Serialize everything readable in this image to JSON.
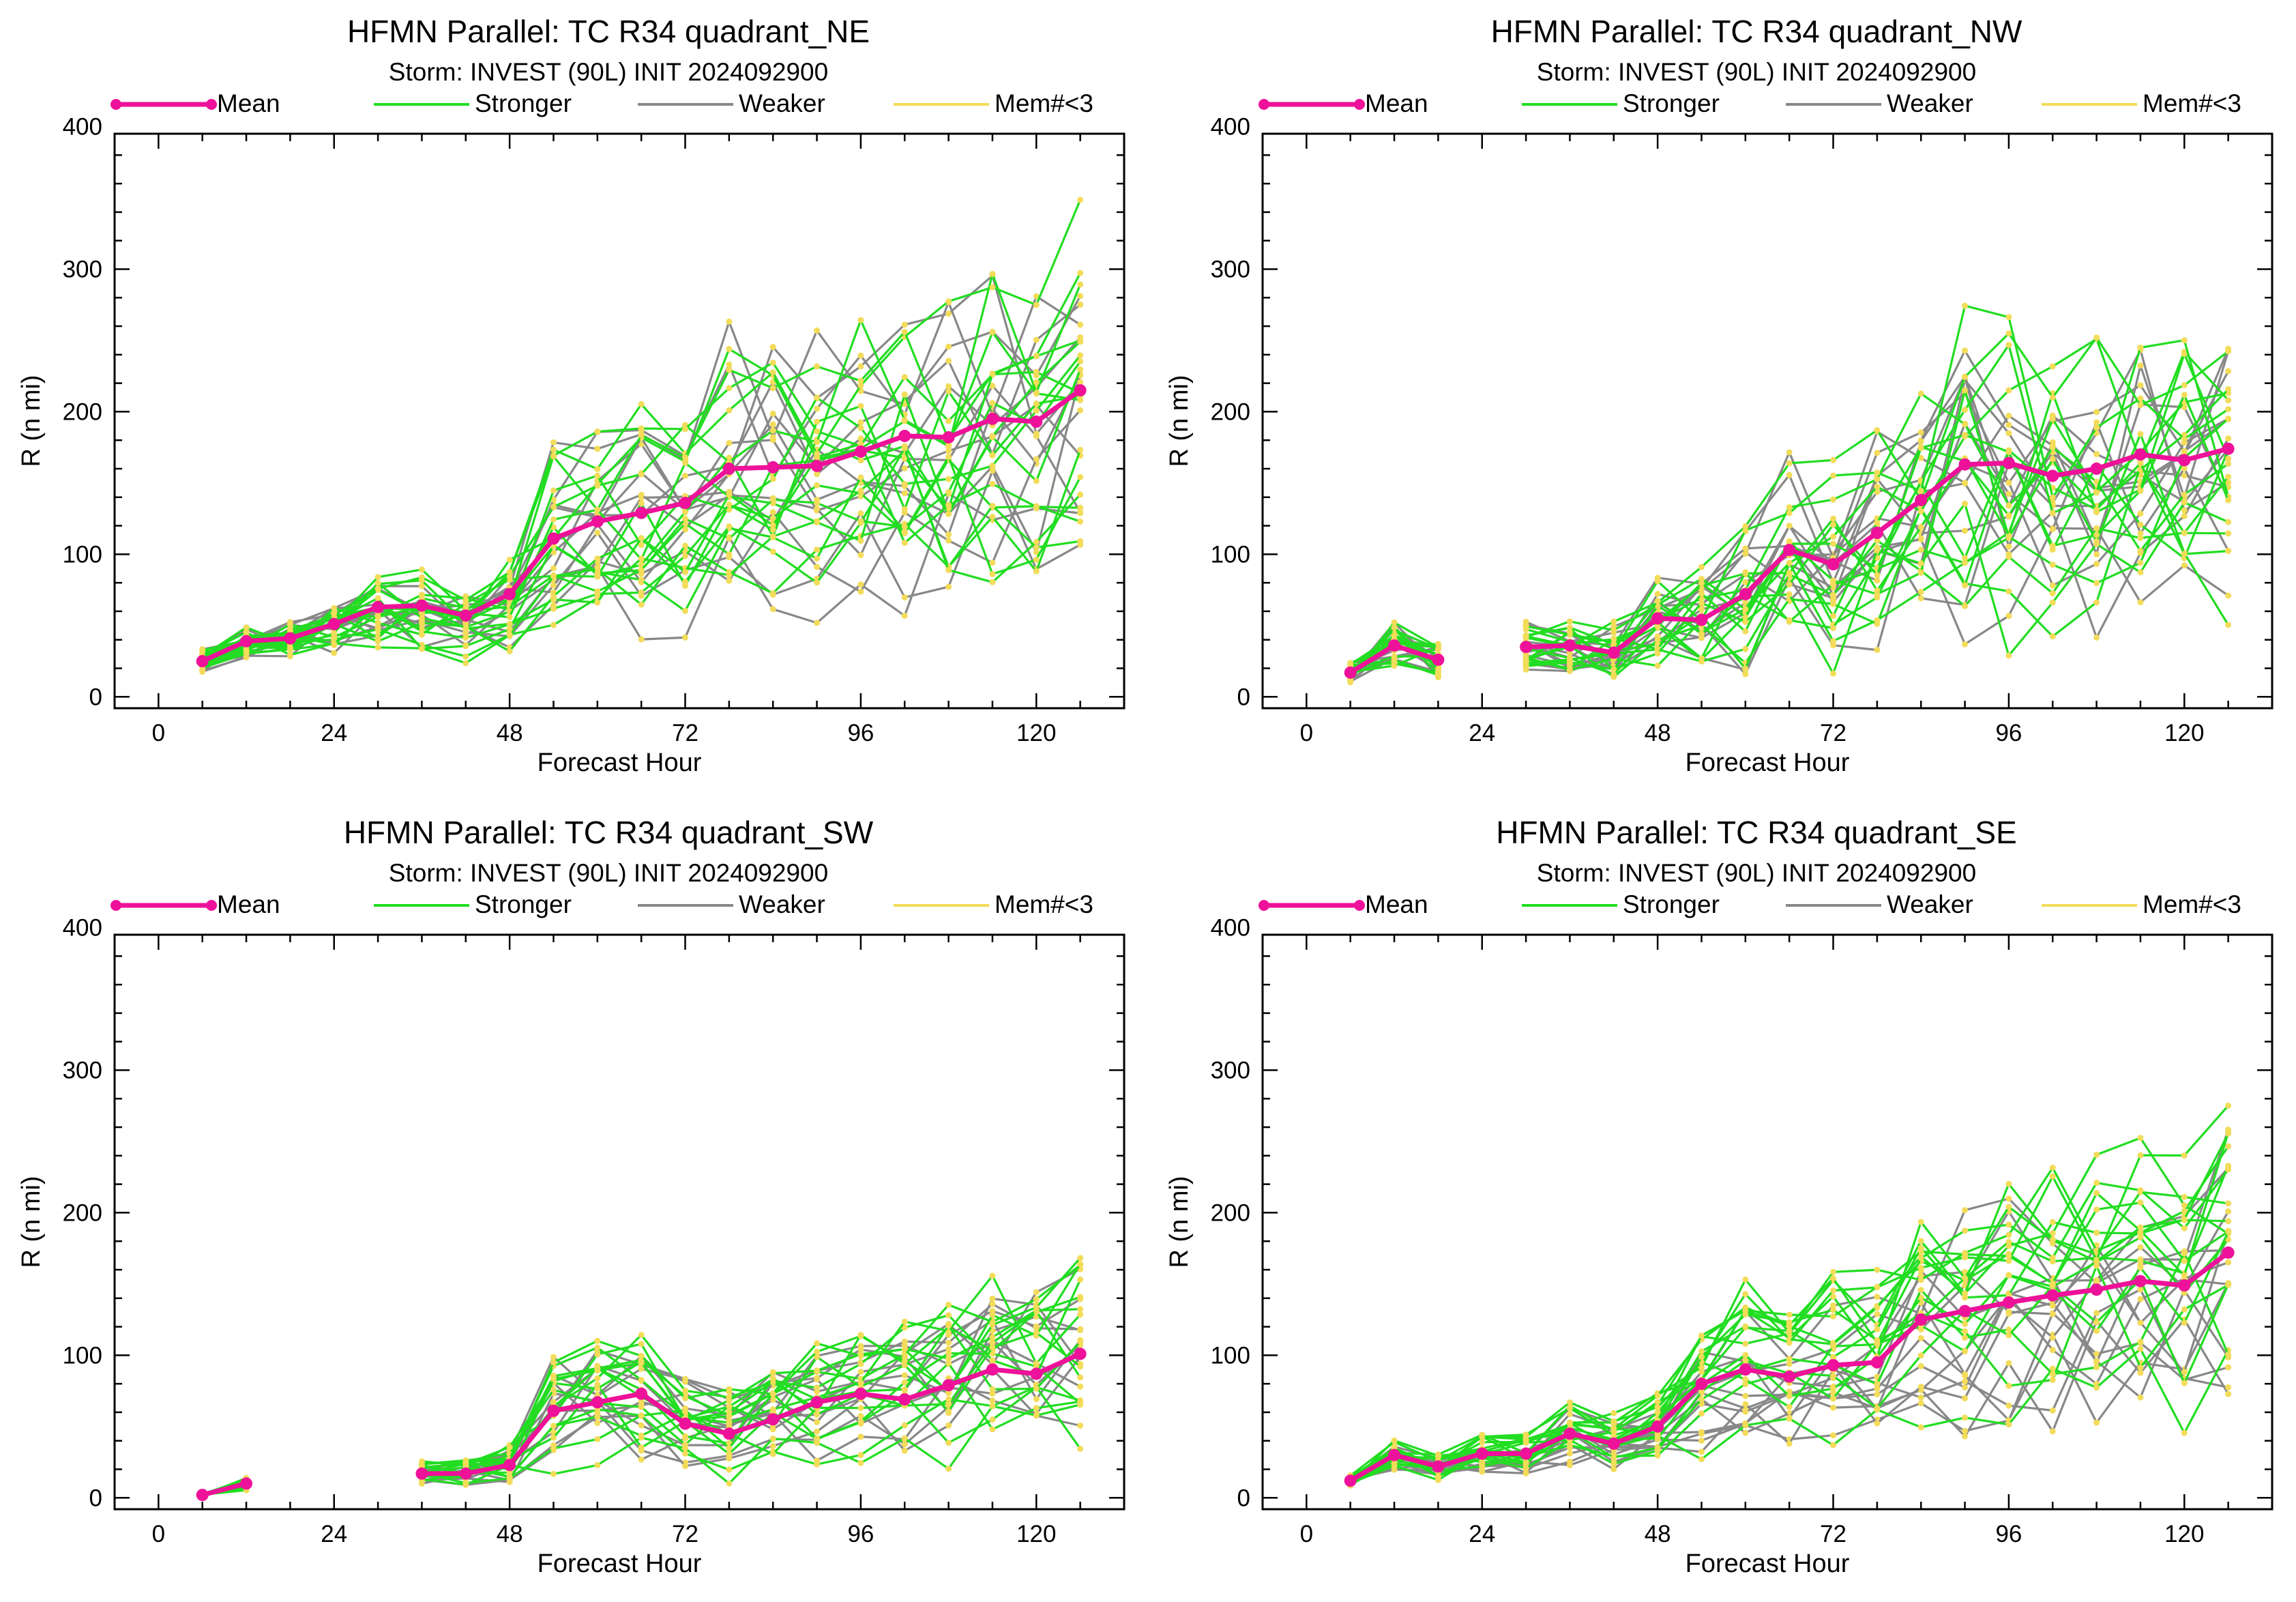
{
  "colors": {
    "mean": "#ee1199",
    "stronger": "#22dd22",
    "weaker": "#888888",
    "few_members": "#f2dc5a",
    "axis": "#000000"
  },
  "legend": [
    "Mean",
    "Stronger",
    "Weaker",
    "Mem#<3"
  ],
  "chart_data": [
    {
      "type": "line",
      "title": "HFMN Parallel: TC  R34 quadrant_NE",
      "subtitle": "Storm: INVEST (90L) INIT 2024092900",
      "xlabel": "Forecast Hour",
      "ylabel": "R (n mi)",
      "xlim": [
        -6,
        132
      ],
      "ylim": [
        -8,
        395
      ],
      "xticks": [
        0,
        24,
        48,
        72,
        96,
        120
      ],
      "yticks": [
        0,
        100,
        200,
        300,
        400
      ],
      "mean": {
        "name": "Mean",
        "x": [
          6,
          12,
          18,
          24,
          30,
          36,
          42,
          48,
          54,
          60,
          66,
          72,
          78,
          84,
          90,
          96,
          102,
          108,
          114,
          120,
          126
        ],
        "y": [
          25,
          39,
          41,
          51,
          63,
          64,
          57,
          72,
          111,
          123,
          129,
          136,
          160,
          161,
          162,
          172,
          183,
          182,
          195,
          193,
          215
        ]
      },
      "spread": {
        "n_stronger": 17,
        "n_weaker": 12,
        "noise": 0.3,
        "seed": 11
      }
    },
    {
      "type": "line",
      "title": "HFMN Parallel: TC  R34 quadrant_NW",
      "subtitle": "Storm: INVEST (90L) INIT 2024092900",
      "xlabel": "Forecast Hour",
      "ylabel": "R (n mi)",
      "xlim": [
        -6,
        132
      ],
      "ylim": [
        -8,
        395
      ],
      "xticks": [
        0,
        24,
        48,
        72,
        96,
        120
      ],
      "yticks": [
        0,
        100,
        200,
        300,
        400
      ],
      "mean": {
        "name": "Mean",
        "x": [
          6,
          12,
          18,
          30,
          36,
          42,
          48,
          54,
          60,
          66,
          72,
          78,
          84,
          90,
          96,
          102,
          108,
          114,
          120,
          126
        ],
        "y": [
          17,
          36,
          26,
          35,
          36,
          31,
          55,
          54,
          72,
          103,
          93,
          115,
          138,
          163,
          164,
          155,
          160,
          170,
          166,
          174
        ]
      },
      "gap": [
        18,
        30
      ],
      "spread": {
        "n_stronger": 16,
        "n_weaker": 12,
        "noise": 0.42,
        "seed": 23
      }
    },
    {
      "type": "line",
      "title": "HFMN Parallel: TC  R34 quadrant_SW",
      "subtitle": "Storm: INVEST (90L) INIT 2024092900",
      "xlabel": "Forecast Hour",
      "ylabel": "R (n mi)",
      "xlim": [
        -6,
        132
      ],
      "ylim": [
        -8,
        395
      ],
      "xticks": [
        0,
        24,
        48,
        72,
        96,
        120
      ],
      "yticks": [
        0,
        100,
        200,
        300,
        400
      ],
      "mean": {
        "name": "Mean",
        "x": [
          6,
          12,
          36,
          42,
          48,
          54,
          60,
          66,
          72,
          78,
          84,
          90,
          96,
          102,
          108,
          114,
          120,
          126
        ],
        "y": [
          2,
          10,
          17,
          17,
          23,
          61,
          67,
          73,
          52,
          45,
          55,
          67,
          73,
          69,
          79,
          90,
          87,
          101
        ]
      },
      "gap": [
        12,
        36
      ],
      "spread": {
        "n_stronger": 15,
        "n_weaker": 11,
        "noise": 0.4,
        "seed": 37
      }
    },
    {
      "type": "line",
      "title": "HFMN Parallel: TC  R34 quadrant_SE",
      "subtitle": "Storm: INVEST (90L) INIT 2024092900",
      "xlabel": "Forecast Hour",
      "ylabel": "R (n mi)",
      "xlim": [
        -6,
        132
      ],
      "ylim": [
        -8,
        395
      ],
      "xticks": [
        0,
        24,
        48,
        72,
        96,
        120
      ],
      "yticks": [
        0,
        100,
        200,
        300,
        400
      ],
      "mean": {
        "name": "Mean",
        "x": [
          6,
          12,
          18,
          24,
          30,
          36,
          42,
          48,
          54,
          60,
          66,
          72,
          78,
          84,
          90,
          96,
          102,
          108,
          114,
          120,
          126
        ],
        "y": [
          12,
          30,
          22,
          31,
          31,
          45,
          38,
          50,
          80,
          90,
          85,
          93,
          95,
          125,
          131,
          137,
          142,
          146,
          152,
          149,
          172
        ]
      },
      "spread": {
        "n_stronger": 16,
        "n_weaker": 12,
        "noise": 0.3,
        "seed": 53
      }
    }
  ]
}
